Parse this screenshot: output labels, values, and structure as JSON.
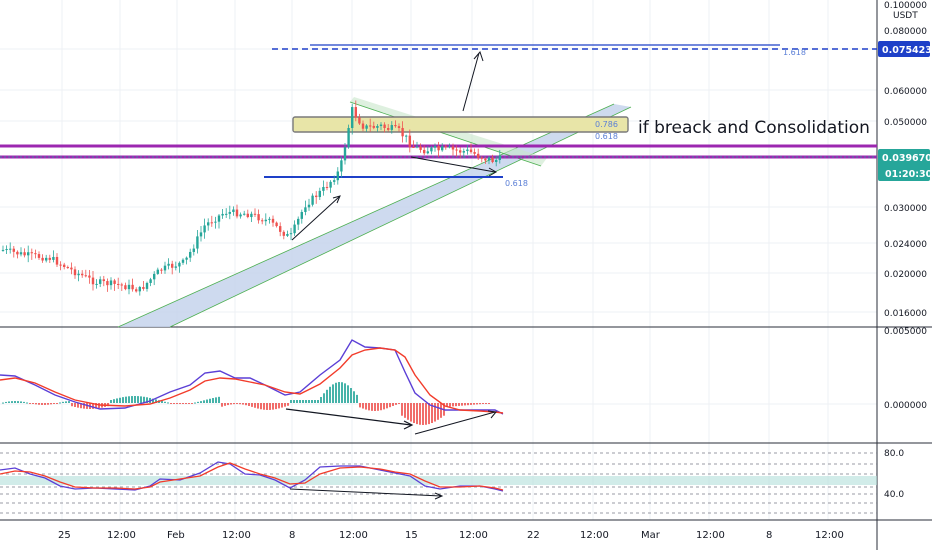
{
  "symbol": {
    "quote": "USDT",
    "top_price": "0.100000"
  },
  "price_axis": {
    "labels": [
      "0.080000",
      "0.060000",
      "0.050000",
      "0.039670",
      "0.030000",
      "0.024000",
      "0.020000",
      "0.016000"
    ],
    "current_price": "0.039670",
    "countdown": "01:20:30",
    "target_price": "0.075423",
    "current_color": "#26a69a",
    "target_color": "#1e40c8"
  },
  "macd_axis": {
    "top": "0.005000",
    "zero": "0.000000"
  },
  "rsi_axis": {
    "upper": "80.0",
    "lower": "40.0"
  },
  "time_axis": [
    "25",
    "12:00",
    "Feb",
    "12:00",
    "8",
    "12:00",
    "15",
    "12:00",
    "22",
    "12:00",
    "Mar",
    "12:00",
    "8",
    "12:00"
  ],
  "annotations": {
    "consolidation_text": "if breack and Consolidation",
    "fib_786": "0.786",
    "fib_618_box": "0.618",
    "fib_618_support": "0.618",
    "fib_target": "1.618"
  },
  "colors": {
    "up": "#26a69a",
    "down": "#ef5350",
    "macd_line": "#5b3fd6",
    "signal_line": "#f23c2b",
    "resistance": "#9c27b0",
    "channel": "#b7c7e6",
    "box": "#e8e5a8"
  }
}
